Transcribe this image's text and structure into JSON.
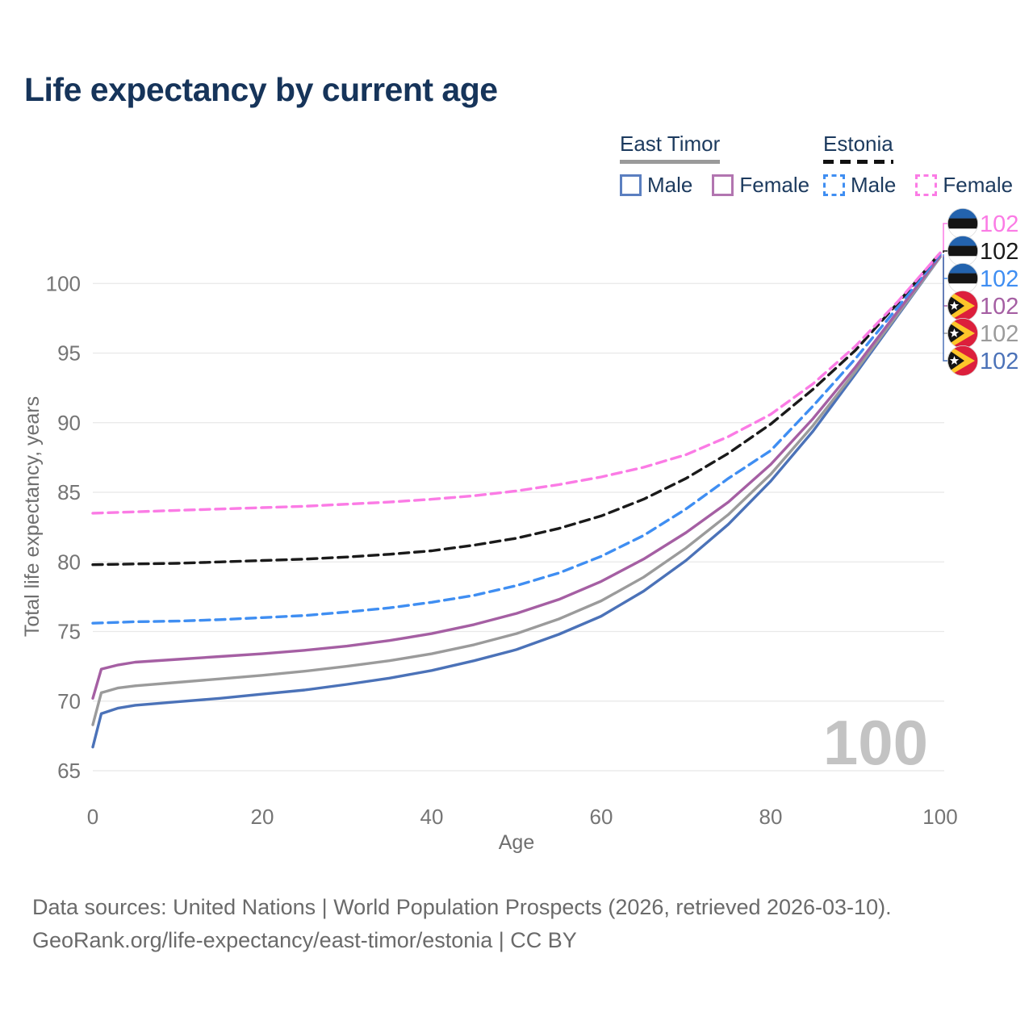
{
  "title": "Life expectancy by current age",
  "legend": {
    "groups": [
      {
        "name": "East Timor",
        "line_style": "solid",
        "underline_color": "#9a9a9a",
        "items": [
          {
            "label": "Male",
            "color": "#5b7fc0",
            "dashed": false
          },
          {
            "label": "Female",
            "color": "#b275b0",
            "dashed": false
          }
        ]
      },
      {
        "name": "Estonia",
        "line_style": "dashed",
        "underline_color": "#141414",
        "items": [
          {
            "label": "Male",
            "color": "#3f8ef2",
            "dashed": true
          },
          {
            "label": "Female",
            "color": "#fb7be5",
            "dashed": true
          }
        ]
      }
    ]
  },
  "chart_data": {
    "type": "line",
    "title": "Life expectancy by current age",
    "xlabel": "Age",
    "ylabel": "Total life expectancy, years",
    "xlim": [
      0,
      100
    ],
    "ylim": [
      65,
      103
    ],
    "xticks": [
      0,
      20,
      40,
      60,
      80,
      100
    ],
    "yticks": [
      65,
      70,
      75,
      80,
      85,
      90,
      95,
      100
    ],
    "grid": "horizontal",
    "legend_position": "top-right",
    "age_counter_watermark": "100",
    "series": [
      {
        "name": "Estonia — Female",
        "country": "Estonia",
        "sex": "Female",
        "flag": "estonia",
        "color": "#fb7be5",
        "dashed": true,
        "end_label": "102",
        "points": [
          [
            0,
            83.5
          ],
          [
            5,
            83.6
          ],
          [
            10,
            83.7
          ],
          [
            15,
            83.8
          ],
          [
            20,
            83.9
          ],
          [
            25,
            84.0
          ],
          [
            30,
            84.15
          ],
          [
            35,
            84.3
          ],
          [
            40,
            84.5
          ],
          [
            45,
            84.75
          ],
          [
            50,
            85.1
          ],
          [
            55,
            85.55
          ],
          [
            60,
            86.1
          ],
          [
            65,
            86.8
          ],
          [
            70,
            87.7
          ],
          [
            75,
            89.0
          ],
          [
            80,
            90.6
          ],
          [
            85,
            92.8
          ],
          [
            90,
            95.5
          ],
          [
            95,
            98.7
          ],
          [
            100,
            102.2
          ]
        ]
      },
      {
        "name": "Estonia — Both sexes",
        "country": "Estonia",
        "sex": "Both",
        "flag": "estonia",
        "color": "#1a1a1a",
        "dashed": true,
        "end_label": "102",
        "points": [
          [
            0,
            79.8
          ],
          [
            5,
            79.85
          ],
          [
            10,
            79.9
          ],
          [
            15,
            80.0
          ],
          [
            20,
            80.1
          ],
          [
            25,
            80.2
          ],
          [
            30,
            80.35
          ],
          [
            35,
            80.55
          ],
          [
            40,
            80.8
          ],
          [
            45,
            81.2
          ],
          [
            50,
            81.7
          ],
          [
            55,
            82.4
          ],
          [
            60,
            83.3
          ],
          [
            65,
            84.5
          ],
          [
            70,
            86.0
          ],
          [
            75,
            87.8
          ],
          [
            80,
            89.9
          ],
          [
            85,
            92.4
          ],
          [
            90,
            95.2
          ],
          [
            95,
            98.6
          ],
          [
            100,
            102.2
          ]
        ]
      },
      {
        "name": "Estonia — Male",
        "country": "Estonia",
        "sex": "Male",
        "flag": "estonia",
        "color": "#3f8ef2",
        "dashed": true,
        "end_label": "102",
        "points": [
          [
            0,
            75.6
          ],
          [
            5,
            75.7
          ],
          [
            10,
            75.75
          ],
          [
            15,
            75.85
          ],
          [
            20,
            76.0
          ],
          [
            25,
            76.15
          ],
          [
            30,
            76.4
          ],
          [
            35,
            76.7
          ],
          [
            40,
            77.1
          ],
          [
            45,
            77.6
          ],
          [
            50,
            78.3
          ],
          [
            55,
            79.2
          ],
          [
            60,
            80.4
          ],
          [
            65,
            81.9
          ],
          [
            70,
            83.8
          ],
          [
            75,
            86.0
          ],
          [
            80,
            88.0
          ],
          [
            85,
            91.2
          ],
          [
            90,
            94.6
          ],
          [
            95,
            98.3
          ],
          [
            100,
            102.1
          ]
        ]
      },
      {
        "name": "East Timor — Female",
        "country": "East Timor",
        "sex": "Female",
        "flag": "east-timor",
        "color": "#a55fa3",
        "dashed": false,
        "end_label": "102",
        "points": [
          [
            0,
            70.2
          ],
          [
            1,
            72.3
          ],
          [
            3,
            72.6
          ],
          [
            5,
            72.8
          ],
          [
            10,
            73.0
          ],
          [
            15,
            73.2
          ],
          [
            20,
            73.4
          ],
          [
            25,
            73.65
          ],
          [
            30,
            73.95
          ],
          [
            35,
            74.35
          ],
          [
            40,
            74.85
          ],
          [
            45,
            75.5
          ],
          [
            50,
            76.3
          ],
          [
            55,
            77.3
          ],
          [
            60,
            78.6
          ],
          [
            65,
            80.2
          ],
          [
            70,
            82.1
          ],
          [
            75,
            84.3
          ],
          [
            80,
            87.0
          ],
          [
            85,
            90.3
          ],
          [
            90,
            94.0
          ],
          [
            95,
            98.0
          ],
          [
            100,
            102.0
          ]
        ]
      },
      {
        "name": "East Timor — Both sexes",
        "country": "East Timor",
        "sex": "Both",
        "flag": "east-timor",
        "color": "#9b9b9b",
        "dashed": false,
        "end_label": "102",
        "points": [
          [
            0,
            68.3
          ],
          [
            1,
            70.6
          ],
          [
            3,
            70.95
          ],
          [
            5,
            71.1
          ],
          [
            10,
            71.35
          ],
          [
            15,
            71.6
          ],
          [
            20,
            71.85
          ],
          [
            25,
            72.15
          ],
          [
            30,
            72.5
          ],
          [
            35,
            72.9
          ],
          [
            40,
            73.4
          ],
          [
            45,
            74.05
          ],
          [
            50,
            74.85
          ],
          [
            55,
            75.9
          ],
          [
            60,
            77.2
          ],
          [
            65,
            78.9
          ],
          [
            70,
            81.0
          ],
          [
            75,
            83.4
          ],
          [
            80,
            86.3
          ],
          [
            85,
            89.8
          ],
          [
            90,
            93.7
          ],
          [
            95,
            97.8
          ],
          [
            100,
            101.9
          ]
        ]
      },
      {
        "name": "East Timor — Male",
        "country": "East Timor",
        "sex": "Male",
        "flag": "east-timor",
        "color": "#4b72b8",
        "dashed": false,
        "end_label": "102",
        "points": [
          [
            0,
            66.7
          ],
          [
            1,
            69.1
          ],
          [
            3,
            69.5
          ],
          [
            5,
            69.7
          ],
          [
            10,
            69.95
          ],
          [
            15,
            70.2
          ],
          [
            20,
            70.5
          ],
          [
            25,
            70.8
          ],
          [
            30,
            71.2
          ],
          [
            35,
            71.65
          ],
          [
            40,
            72.2
          ],
          [
            45,
            72.9
          ],
          [
            50,
            73.7
          ],
          [
            55,
            74.8
          ],
          [
            60,
            76.1
          ],
          [
            65,
            77.9
          ],
          [
            70,
            80.1
          ],
          [
            75,
            82.7
          ],
          [
            80,
            85.8
          ],
          [
            85,
            89.4
          ],
          [
            90,
            93.5
          ],
          [
            95,
            97.7
          ],
          [
            100,
            101.9
          ]
        ]
      }
    ],
    "flag_colors": {
      "estonia": {
        "top": "#2363ae",
        "middle": "#151515",
        "bottom": "#ffffff"
      },
      "east_timor": {
        "field": "#dc1f3c",
        "arrow": "#fdc62a",
        "triangle": "#141414",
        "star": "#ffffff"
      }
    }
  },
  "footer": {
    "line1": "Data sources: United Nations | World Population Prospects (2026, retrieved 2026-03-10).",
    "line2": "GeoRank.org/life-expectancy/east-timor/estonia | CC BY"
  }
}
